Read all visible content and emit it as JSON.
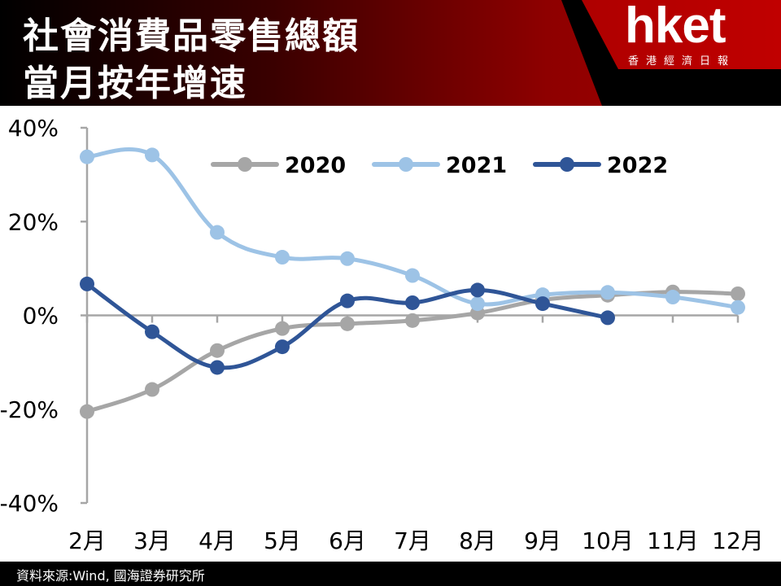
{
  "header": {
    "title_line1": "社會消費品零售總額",
    "title_line2": "當月按年增速",
    "logo_text": "hket",
    "logo_subtitle": "香港經濟日報"
  },
  "colors": {
    "series_2020": "#a6a6a6",
    "series_2021": "#9dc3e6",
    "series_2022": "#2f5597",
    "axis": "#a6a6a6"
  },
  "chart_data": {
    "type": "line",
    "categories": [
      "2月",
      "3月",
      "4月",
      "5月",
      "6月",
      "7月",
      "8月",
      "9月",
      "10月",
      "11月",
      "12月"
    ],
    "ylim": [
      -40,
      40
    ],
    "yticks": [
      40,
      20,
      0,
      -20,
      -40
    ],
    "ytick_labels": [
      "40%",
      "20%",
      "0%",
      "-20%",
      "-40%"
    ],
    "grid": false,
    "legend_position": "top-right",
    "series": [
      {
        "name": "2020",
        "values": [
          -20.5,
          -15.8,
          -7.5,
          -2.8,
          -1.8,
          -1.1,
          0.5,
          3.3,
          4.3,
          5.0,
          4.6
        ]
      },
      {
        "name": "2021",
        "values": [
          33.8,
          34.2,
          17.7,
          12.4,
          12.1,
          8.5,
          2.5,
          4.4,
          4.9,
          3.9,
          1.7
        ]
      },
      {
        "name": "2022",
        "values": [
          6.7,
          -3.5,
          -11.1,
          -6.7,
          3.1,
          2.7,
          5.4,
          2.5,
          -0.5,
          null,
          null
        ]
      }
    ]
  },
  "footer": {
    "source": "資料來源:Wind, 國海證券研究所"
  }
}
